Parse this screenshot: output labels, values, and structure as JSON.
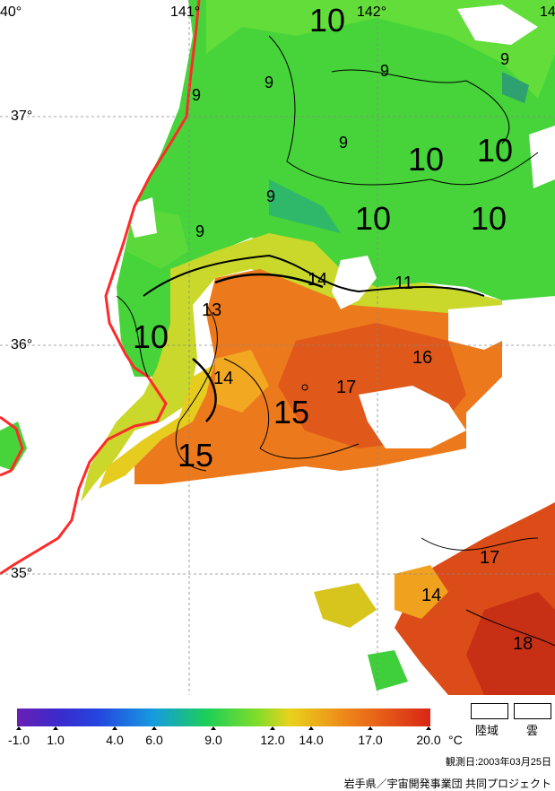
{
  "map": {
    "longitude_labels": [
      "40°",
      "141°",
      "142°",
      "14"
    ],
    "latitude_labels": [
      "37°",
      "36°",
      "35°"
    ],
    "contour_labels": [
      "10",
      "9",
      "9",
      "9",
      "9",
      "9",
      "9",
      "10",
      "10",
      "10",
      "10",
      "9",
      "14",
      "11",
      "13",
      "10",
      "14",
      "16",
      "17",
      "15",
      "15",
      "17",
      "14",
      "18"
    ]
  },
  "legend": {
    "ticks": [
      "-1.0",
      "1.0",
      "4.0",
      "6.0",
      "9.0",
      "12.0",
      "14.0",
      "17.0",
      "20.0"
    ],
    "unit": "°C",
    "land_label": "陸域",
    "cloud_label": "雲"
  },
  "observation_date": "観測日:2003年03月25日",
  "credit": "岩手県／宇宙開発事業団 共同プロジェクト",
  "colors": {
    "coastline": "#ff2a2a",
    "cold_green": "#3fcf3a",
    "warm_orange": "#e8701c",
    "hot_red": "#d43618",
    "cloud": "#ffffff"
  }
}
